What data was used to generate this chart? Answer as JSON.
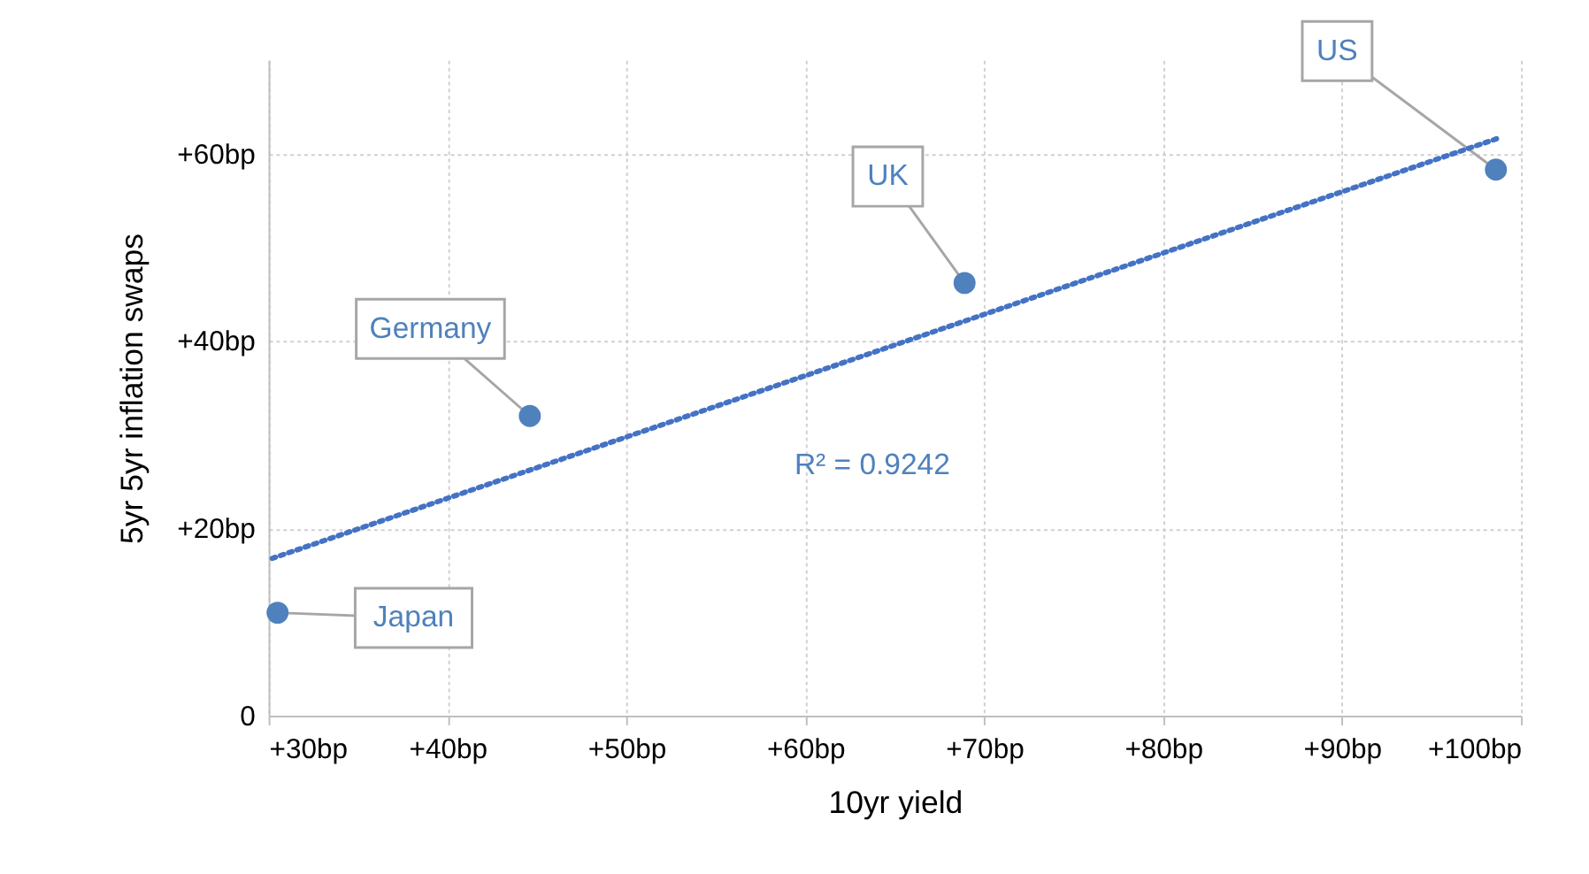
{
  "chart_data": {
    "type": "scatter",
    "xlabel": "10yr yield",
    "ylabel": "5yr 5yr inflation swaps",
    "xlim": [
      30,
      100
    ],
    "ylim": [
      0,
      70
    ],
    "xticks": [
      {
        "value": 30,
        "label": "+30bp"
      },
      {
        "value": 40,
        "label": "+40bp"
      },
      {
        "value": 50,
        "label": "+50bp"
      },
      {
        "value": 60,
        "label": "+60bp"
      },
      {
        "value": 70,
        "label": "+70bp"
      },
      {
        "value": 80,
        "label": "+80bp"
      },
      {
        "value": 90,
        "label": "+90bp"
      },
      {
        "value": 100,
        "label": "+100bp"
      }
    ],
    "yticks": [
      0,
      {
        "value": 20,
        "label": "+20bp"
      },
      {
        "value": 40,
        "label": "+40bp"
      },
      {
        "value": 60,
        "label": "+60bp"
      }
    ],
    "series": [
      {
        "color": "#4f81bd",
        "marker": "circle",
        "x": [
          30.5,
          44.6,
          68.9,
          98.6
        ],
        "values": [
          11.0,
          32.0,
          46.2,
          58.3
        ]
      },
      {
        "type": "line",
        "color": "#4472c4",
        "line_style": "dotted",
        "x": [
          30.2,
          98.8
        ],
        "values": [
          16.8,
          61.7
        ]
      }
    ],
    "annotations": [
      {
        "text": "Japan",
        "x": 30.5,
        "y": 11.0
      },
      {
        "text": "Germany",
        "x": 44.6,
        "y": 32.0
      },
      {
        "text": "UK",
        "x": 68.9,
        "y": 46.2
      },
      {
        "text": "US",
        "x": 98.6,
        "y": 58.3
      },
      "R² = 0.9242"
    ],
    "grid": true
  }
}
